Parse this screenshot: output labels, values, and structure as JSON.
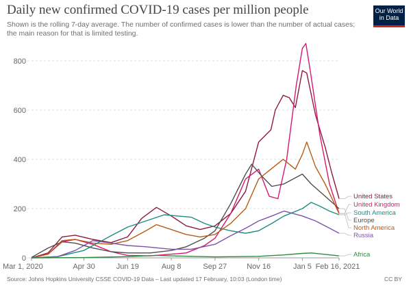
{
  "header": {
    "title": "Daily new confirmed COVID-19 cases per million people",
    "subtitle": "Shown is the rolling 7-day average. The number of confirmed cases is lower than the number of actual cases; the main reason for that is limited testing.",
    "logo_line1": "Our World",
    "logo_line2": "in Data"
  },
  "footer": {
    "source": "Source: Johns Hopkins University CSSE COVID-19 Data – Last updated 17 February, 10:03 (London time)",
    "license": "CC BY"
  },
  "colors": {
    "United States": "#8c1a3c",
    "United Kingdom": "#d6186e",
    "South America": "#1a8c82",
    "Europe": "#4d4d4d",
    "North America": "#b85a14",
    "Russia": "#7a52a8",
    "Africa": "#2e8b3d",
    "logo_bg": "#002147",
    "logo_accent": "#ce261e"
  },
  "chart_data": {
    "type": "line",
    "title": "Daily new confirmed COVID-19 cases per million people",
    "ylim": [
      0,
      880
    ],
    "y_ticks": [
      0,
      200,
      400,
      600,
      800
    ],
    "x_tick_labels": [
      "Mar 1, 2020",
      "Apr 30",
      "Jun 19",
      "Aug 8",
      "Sep 27",
      "Nov 16",
      "Jan 5",
      "Feb 16, 2021"
    ],
    "x_tick_dates": [
      "2020-03-01",
      "2020-04-30",
      "2020-06-19",
      "2020-08-08",
      "2020-09-27",
      "2020-11-16",
      "2021-01-05",
      "2021-02-16"
    ],
    "grid": "horizontal",
    "legend": "end-of-line labels on right",
    "series": [
      {
        "name": "United States",
        "points": [
          [
            "2020-03-01",
            0
          ],
          [
            "2020-03-20",
            20
          ],
          [
            "2020-04-05",
            85
          ],
          [
            "2020-04-20",
            92
          ],
          [
            "2020-05-10",
            75
          ],
          [
            "2020-05-31",
            62
          ],
          [
            "2020-06-19",
            85
          ],
          [
            "2020-07-05",
            160
          ],
          [
            "2020-07-22",
            205
          ],
          [
            "2020-08-08",
            170
          ],
          [
            "2020-08-25",
            130
          ],
          [
            "2020-09-10",
            115
          ],
          [
            "2020-09-27",
            130
          ],
          [
            "2020-10-15",
            180
          ],
          [
            "2020-11-01",
            270
          ],
          [
            "2020-11-16",
            470
          ],
          [
            "2020-11-30",
            520
          ],
          [
            "2020-12-05",
            600
          ],
          [
            "2020-12-14",
            660
          ],
          [
            "2020-12-21",
            650
          ],
          [
            "2020-12-28",
            610
          ],
          [
            "2021-01-05",
            760
          ],
          [
            "2021-01-10",
            750
          ],
          [
            "2021-01-20",
            580
          ],
          [
            "2021-01-31",
            450
          ],
          [
            "2021-02-08",
            340
          ],
          [
            "2021-02-16",
            240
          ]
        ]
      },
      {
        "name": "United Kingdom",
        "points": [
          [
            "2020-03-01",
            0
          ],
          [
            "2020-03-20",
            15
          ],
          [
            "2020-04-05",
            65
          ],
          [
            "2020-04-20",
            75
          ],
          [
            "2020-05-10",
            55
          ],
          [
            "2020-05-31",
            25
          ],
          [
            "2020-06-19",
            10
          ],
          [
            "2020-07-15",
            8
          ],
          [
            "2020-08-08",
            15
          ],
          [
            "2020-08-25",
            20
          ],
          [
            "2020-09-15",
            50
          ],
          [
            "2020-09-27",
            80
          ],
          [
            "2020-10-15",
            180
          ],
          [
            "2020-11-01",
            320
          ],
          [
            "2020-11-16",
            360
          ],
          [
            "2020-11-28",
            250
          ],
          [
            "2020-12-08",
            240
          ],
          [
            "2020-12-18",
            400
          ],
          [
            "2020-12-29",
            700
          ],
          [
            "2021-01-05",
            850
          ],
          [
            "2021-01-09",
            870
          ],
          [
            "2021-01-14",
            760
          ],
          [
            "2021-01-25",
            500
          ],
          [
            "2021-02-05",
            300
          ],
          [
            "2021-02-16",
            180
          ]
        ]
      },
      {
        "name": "South America",
        "points": [
          [
            "2020-03-01",
            0
          ],
          [
            "2020-03-31",
            5
          ],
          [
            "2020-04-30",
            30
          ],
          [
            "2020-05-31",
            90
          ],
          [
            "2020-06-19",
            125
          ],
          [
            "2020-07-10",
            150
          ],
          [
            "2020-07-31",
            175
          ],
          [
            "2020-08-15",
            170
          ],
          [
            "2020-08-31",
            165
          ],
          [
            "2020-09-15",
            140
          ],
          [
            "2020-09-27",
            125
          ],
          [
            "2020-10-15",
            110
          ],
          [
            "2020-11-01",
            100
          ],
          [
            "2020-11-16",
            110
          ],
          [
            "2020-12-01",
            140
          ],
          [
            "2020-12-15",
            170
          ],
          [
            "2021-01-05",
            200
          ],
          [
            "2021-01-15",
            225
          ],
          [
            "2021-01-25",
            210
          ],
          [
            "2021-02-05",
            190
          ],
          [
            "2021-02-16",
            175
          ]
        ]
      },
      {
        "name": "Europe",
        "points": [
          [
            "2020-03-01",
            2
          ],
          [
            "2020-03-20",
            40
          ],
          [
            "2020-04-05",
            65
          ],
          [
            "2020-04-20",
            60
          ],
          [
            "2020-05-10",
            40
          ],
          [
            "2020-05-31",
            25
          ],
          [
            "2020-06-19",
            20
          ],
          [
            "2020-07-15",
            20
          ],
          [
            "2020-08-08",
            30
          ],
          [
            "2020-08-25",
            45
          ],
          [
            "2020-09-15",
            80
          ],
          [
            "2020-09-27",
            110
          ],
          [
            "2020-10-15",
            220
          ],
          [
            "2020-11-01",
            340
          ],
          [
            "2020-11-08",
            380
          ],
          [
            "2020-11-20",
            330
          ],
          [
            "2020-12-01",
            290
          ],
          [
            "2020-12-15",
            300
          ],
          [
            "2021-01-05",
            340
          ],
          [
            "2021-01-15",
            300
          ],
          [
            "2021-01-31",
            250
          ],
          [
            "2021-02-16",
            200
          ]
        ]
      },
      {
        "name": "North America",
        "points": [
          [
            "2020-03-01",
            0
          ],
          [
            "2020-03-20",
            15
          ],
          [
            "2020-04-05",
            70
          ],
          [
            "2020-04-20",
            75
          ],
          [
            "2020-05-10",
            60
          ],
          [
            "2020-05-31",
            55
          ],
          [
            "2020-06-19",
            70
          ],
          [
            "2020-07-10",
            110
          ],
          [
            "2020-07-22",
            135
          ],
          [
            "2020-08-08",
            115
          ],
          [
            "2020-08-25",
            95
          ],
          [
            "2020-09-10",
            85
          ],
          [
            "2020-09-27",
            95
          ],
          [
            "2020-10-15",
            140
          ],
          [
            "2020-11-01",
            200
          ],
          [
            "2020-11-16",
            320
          ],
          [
            "2020-11-30",
            360
          ],
          [
            "2020-12-14",
            400
          ],
          [
            "2020-12-28",
            360
          ],
          [
            "2021-01-05",
            420
          ],
          [
            "2021-01-10",
            470
          ],
          [
            "2021-01-20",
            370
          ],
          [
            "2021-01-31",
            300
          ],
          [
            "2021-02-16",
            180
          ]
        ]
      },
      {
        "name": "Russia",
        "points": [
          [
            "2020-03-01",
            0
          ],
          [
            "2020-03-31",
            5
          ],
          [
            "2020-04-20",
            30
          ],
          [
            "2020-05-10",
            70
          ],
          [
            "2020-05-31",
            60
          ],
          [
            "2020-06-19",
            50
          ],
          [
            "2020-07-10",
            45
          ],
          [
            "2020-08-08",
            35
          ],
          [
            "2020-08-31",
            35
          ],
          [
            "2020-09-27",
            55
          ],
          [
            "2020-10-15",
            90
          ],
          [
            "2020-11-01",
            120
          ],
          [
            "2020-11-16",
            150
          ],
          [
            "2020-12-01",
            170
          ],
          [
            "2020-12-15",
            190
          ],
          [
            "2021-01-05",
            170
          ],
          [
            "2021-01-20",
            150
          ],
          [
            "2021-01-31",
            130
          ],
          [
            "2021-02-16",
            100
          ]
        ]
      },
      {
        "name": "Africa",
        "points": [
          [
            "2020-03-01",
            0
          ],
          [
            "2020-04-30",
            1
          ],
          [
            "2020-06-19",
            5
          ],
          [
            "2020-07-22",
            10
          ],
          [
            "2020-08-08",
            8
          ],
          [
            "2020-09-27",
            4
          ],
          [
            "2020-11-16",
            6
          ],
          [
            "2020-12-15",
            12
          ],
          [
            "2021-01-05",
            18
          ],
          [
            "2021-01-15",
            20
          ],
          [
            "2021-02-16",
            8
          ]
        ]
      }
    ]
  }
}
